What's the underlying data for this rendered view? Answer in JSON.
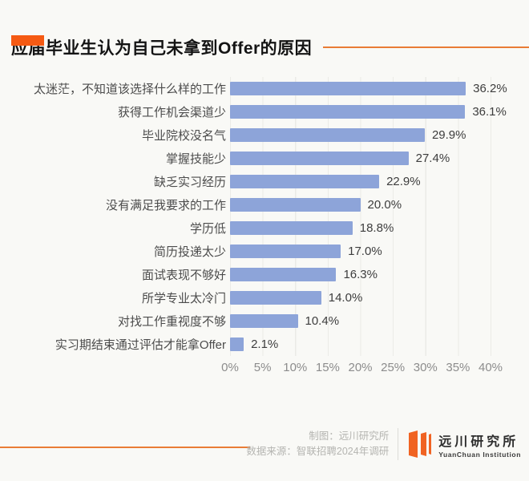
{
  "page": {
    "title": "应届毕业生认为自己未拿到Offer的原因"
  },
  "chart_data": {
    "type": "bar",
    "orientation": "horizontal",
    "title": "应届毕业生认为自己未拿到Offer的原因",
    "categories": [
      "太迷茫，不知道该选择什么样的工作",
      "获得工作机会渠道少",
      "毕业院校没名气",
      "掌握技能少",
      "缺乏实习经历",
      "没有满足我要求的工作",
      "学历低",
      "简历投递太少",
      "面试表现不够好",
      "所学专业太冷门",
      "对找工作重视度不够",
      "实习期结束通过评估才能拿Offer"
    ],
    "values": [
      36.2,
      36.1,
      29.9,
      27.4,
      22.9,
      20.0,
      18.8,
      17.0,
      16.3,
      14.0,
      10.4,
      2.1
    ],
    "value_labels": [
      "36.2%",
      "36.1%",
      "29.9%",
      "27.4%",
      "22.9%",
      "20.0%",
      "18.8%",
      "17.0%",
      "16.3%",
      "14.0%",
      "10.4%",
      "2.1%"
    ],
    "xlim": [
      0,
      40
    ],
    "x_ticks": [
      "0%",
      "5%",
      "10%",
      "15%",
      "20%",
      "25%",
      "30%",
      "35%",
      "40%"
    ],
    "grid": true,
    "legend": false,
    "bar_color": "#8da4d9"
  },
  "footer": {
    "credit_line1": "制图：远川研究所",
    "credit_line2": "数据来源：智联招聘2024年调研",
    "logo_cn": "远川研究所",
    "logo_en": "YuanChuan Institution"
  },
  "colors": {
    "accent_orange": "#f55a13",
    "line_orange": "#e97c35",
    "bar_blue": "#8da4d9",
    "grid_line": "#ebebe7",
    "background": "#f9f9f6"
  }
}
